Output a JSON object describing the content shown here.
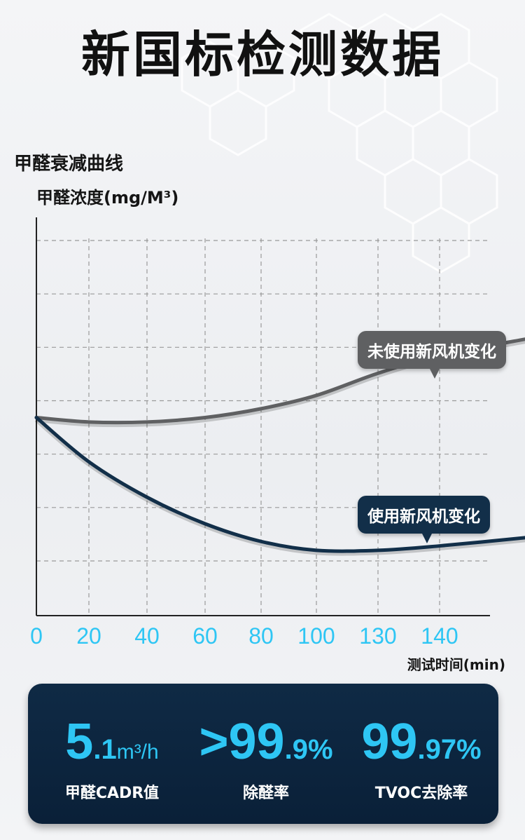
{
  "header": {
    "title": "新国标检测数据"
  },
  "colors": {
    "accent": "#2ec6f4",
    "panel": "#0f2a45",
    "series_without": "#5f6062",
    "series_with": "#122f49"
  },
  "chart_data": {
    "type": "line",
    "title": "甲醛衰减曲线",
    "ylabel": "甲醛浓度(mg/M³)",
    "xlabel": "测试时间(min)",
    "x_ticks": [
      "0",
      "20",
      "40",
      "60",
      "80",
      "100",
      "130",
      "140"
    ],
    "y_gridlines": 7,
    "grid": true,
    "series": [
      {
        "name": "未使用新风机变化",
        "x": [
          0,
          20,
          40,
          60,
          80,
          100,
          130,
          140,
          155
        ],
        "y": [
          0.4,
          0.39,
          0.39,
          0.4,
          0.42,
          0.45,
          0.5,
          0.54,
          0.58
        ]
      },
      {
        "name": "使用新风机变化",
        "x": [
          0,
          20,
          40,
          60,
          80,
          100,
          130,
          140,
          155
        ],
        "y": [
          0.4,
          0.3,
          0.22,
          0.16,
          0.12,
          0.1,
          0.1,
          0.11,
          0.13
        ]
      }
    ]
  },
  "stats": [
    {
      "value_big": "5",
      "value_small": ".1",
      "unit": "m³/h",
      "label": "甲醛CADR值"
    },
    {
      "value_big": ">99",
      "value_small": ".9%",
      "unit": "",
      "label": "除醛率"
    },
    {
      "value_big": "99",
      "value_small": ".97%",
      "unit": "",
      "label": "TVOC去除率"
    }
  ]
}
